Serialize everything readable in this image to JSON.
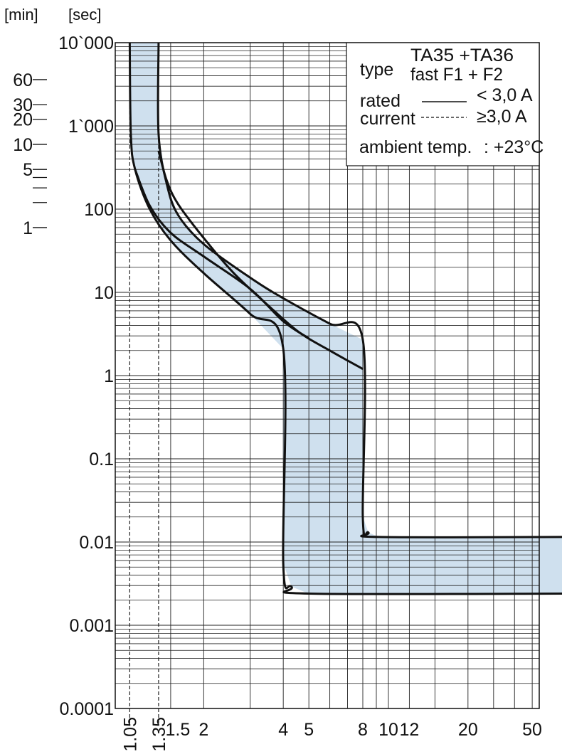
{
  "chart_data": {
    "type": "line",
    "x_scale": "log",
    "y_scale": "log",
    "xlim": [
      1,
      50
    ],
    "ylim": [
      0.0001,
      10000
    ],
    "grid": true,
    "y_unit_sec": "[sec]",
    "y_unit_min": "[min]",
    "y_ticks": [
      {
        "value": 10000,
        "label": "10`000"
      },
      {
        "value": 1000,
        "label": "1`000"
      },
      {
        "value": 100,
        "label": "100"
      },
      {
        "value": 10,
        "label": "10"
      },
      {
        "value": 1,
        "label": "1"
      },
      {
        "value": 0.1,
        "label": "0.1"
      },
      {
        "value": 0.01,
        "label": "0.01"
      },
      {
        "value": 0.001,
        "label": "0.001"
      },
      {
        "value": 0.0001,
        "label": "0.0001"
      }
    ],
    "y_min_ticks": [
      {
        "value": 3600,
        "label": "60"
      },
      {
        "value": 1800,
        "label": "30"
      },
      {
        "value": 1200,
        "label": "20"
      },
      {
        "value": 600,
        "label": "10"
      },
      {
        "value": 300,
        "label": "5"
      },
      {
        "value": 240,
        "label": ""
      },
      {
        "value": 180,
        "label": ""
      },
      {
        "value": 120,
        "label": ""
      },
      {
        "value": 60,
        "label": "1"
      }
    ],
    "x_ticks": [
      {
        "value": 1.05,
        "label": "1.05",
        "rotated": true
      },
      {
        "value": 1.35,
        "label": "1.35",
        "rotated": true
      },
      {
        "value": 1.5,
        "label": "1.5",
        "rotated": false
      },
      {
        "value": 2,
        "label": "2",
        "rotated": false
      },
      {
        "value": 4,
        "label": "4",
        "rotated": false
      },
      {
        "value": 5,
        "label": "5",
        "rotated": false
      },
      {
        "value": 8,
        "label": "8",
        "rotated": false
      },
      {
        "value": 10,
        "label": "10",
        "rotated": false
      },
      {
        "value": 12,
        "label": "12",
        "rotated": false
      },
      {
        "value": 20,
        "label": "20",
        "rotated": false
      },
      {
        "value": 50,
        "label": "50",
        "rotated": false
      }
    ],
    "legend": {
      "position": "top-right",
      "type_label": "type",
      "type_value_1": "TA35 +TA36",
      "type_value_2": "fast F1 + F2",
      "rated_label": "rated",
      "current_label": "current",
      "solid_value": "< 3,0 A",
      "dashed_value": "≥3,0 A",
      "ambient_label": "ambient temp.",
      "ambient_value": ": +23°C"
    },
    "band": {
      "color": "#cfe0ee",
      "upper": [
        [
          1.35,
          10000
        ],
        [
          1.35,
          800
        ],
        [
          1.45,
          200
        ],
        [
          1.6,
          85
        ],
        [
          2,
          38
        ],
        [
          3,
          15
        ],
        [
          4,
          8.5
        ],
        [
          6,
          4.2
        ],
        [
          8,
          2.7
        ],
        [
          8,
          0.02
        ],
        [
          8.4,
          0.013
        ],
        [
          9.2,
          0.0115
        ],
        [
          50,
          0.0115
        ]
      ],
      "lower": [
        [
          1.05,
          10000
        ],
        [
          1.06,
          800
        ],
        [
          1.1,
          300
        ],
        [
          1.25,
          100
        ],
        [
          1.5,
          42
        ],
        [
          2,
          17
        ],
        [
          3,
          5.5
        ],
        [
          4,
          2.1
        ],
        [
          4,
          0.0055
        ],
        [
          4.3,
          0.0029
        ],
        [
          5,
          0.0024
        ],
        [
          50,
          0.0024
        ]
      ]
    },
    "series": [
      {
        "style": "solid",
        "values": [
          [
            1.35,
            10000
          ],
          [
            1.35,
            800
          ],
          [
            1.45,
            200
          ],
          [
            1.6,
            85
          ],
          [
            2,
            38
          ],
          [
            3,
            15
          ],
          [
            4,
            8.5
          ],
          [
            6,
            4.2
          ],
          [
            8,
            2.7
          ],
          [
            8,
            0.02
          ],
          [
            8.4,
            0.013
          ],
          [
            9.2,
            0.0115
          ],
          [
            50,
            0.0115
          ]
        ]
      },
      {
        "style": "solid",
        "values": [
          [
            1.05,
            10000
          ],
          [
            1.06,
            800
          ],
          [
            1.1,
            300
          ],
          [
            1.25,
            100
          ],
          [
            1.5,
            42
          ],
          [
            2,
            17
          ],
          [
            3,
            5.5
          ],
          [
            4,
            2.1
          ],
          [
            4,
            0.0055
          ],
          [
            4.3,
            0.0029
          ],
          [
            5,
            0.0024
          ],
          [
            50,
            0.0024
          ]
        ]
      },
      {
        "style": "solid",
        "values": [
          [
            1.35,
            500
          ],
          [
            1.45,
            220
          ],
          [
            1.6,
            115
          ],
          [
            2,
            45
          ],
          [
            2.6,
            17
          ],
          [
            3.5,
            7
          ],
          [
            4.6,
            3.3
          ],
          [
            6,
            2
          ],
          [
            8,
            1.2
          ]
        ]
      },
      {
        "style": "solid",
        "values": [
          [
            1.1,
            300
          ],
          [
            1.25,
            110
          ],
          [
            1.5,
            52
          ],
          [
            2,
            27
          ],
          [
            3,
            11
          ],
          [
            4,
            4.5
          ],
          [
            5,
            2.8
          ]
        ]
      }
    ],
    "dashed_markers": [
      1.05,
      1.35
    ]
  }
}
